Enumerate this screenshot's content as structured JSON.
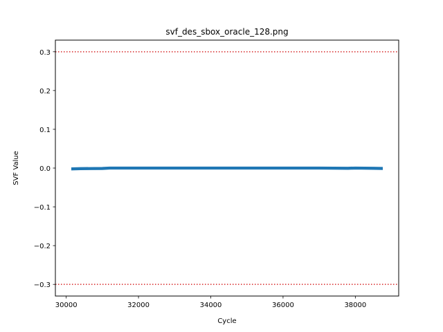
{
  "chart_data": {
    "type": "line",
    "title": "svf_des_sbox_oracle_128.png",
    "xlabel": "Cycle",
    "ylabel": "SVF Value",
    "xlim": [
      29700,
      39200
    ],
    "ylim": [
      -0.33,
      0.33
    ],
    "xticks": [
      30000,
      32000,
      34000,
      36000,
      38000
    ],
    "xtick_labels": [
      "30000",
      "32000",
      "34000",
      "36000",
      "38000"
    ],
    "yticks": [
      -0.3,
      -0.2,
      -0.1,
      0.0,
      0.1,
      0.2,
      0.3
    ],
    "ytick_labels": [
      "−0.3",
      "−0.2",
      "−0.1",
      "0.0",
      "0.1",
      "0.2",
      "0.3"
    ],
    "grid": false,
    "series": [
      {
        "color": "#1f77b4",
        "x": [
          30150,
          30400,
          31000,
          31200,
          32000,
          33000,
          34000,
          35000,
          36000,
          37000,
          37800,
          38000,
          38500,
          38750
        ],
        "y": [
          -0.002,
          -0.0015,
          -0.001,
          0.0,
          0.0,
          0.0,
          0.0,
          0.0,
          0.0,
          0.0,
          -0.0005,
          0.0,
          -0.0005,
          -0.001
        ],
        "band": 0.003
      }
    ],
    "reference_lines": [
      {
        "orientation": "horizontal",
        "y": 0.3,
        "color": "#d62728",
        "style": "dotted"
      },
      {
        "orientation": "horizontal",
        "y": -0.3,
        "color": "#d62728",
        "style": "dotted"
      }
    ]
  }
}
